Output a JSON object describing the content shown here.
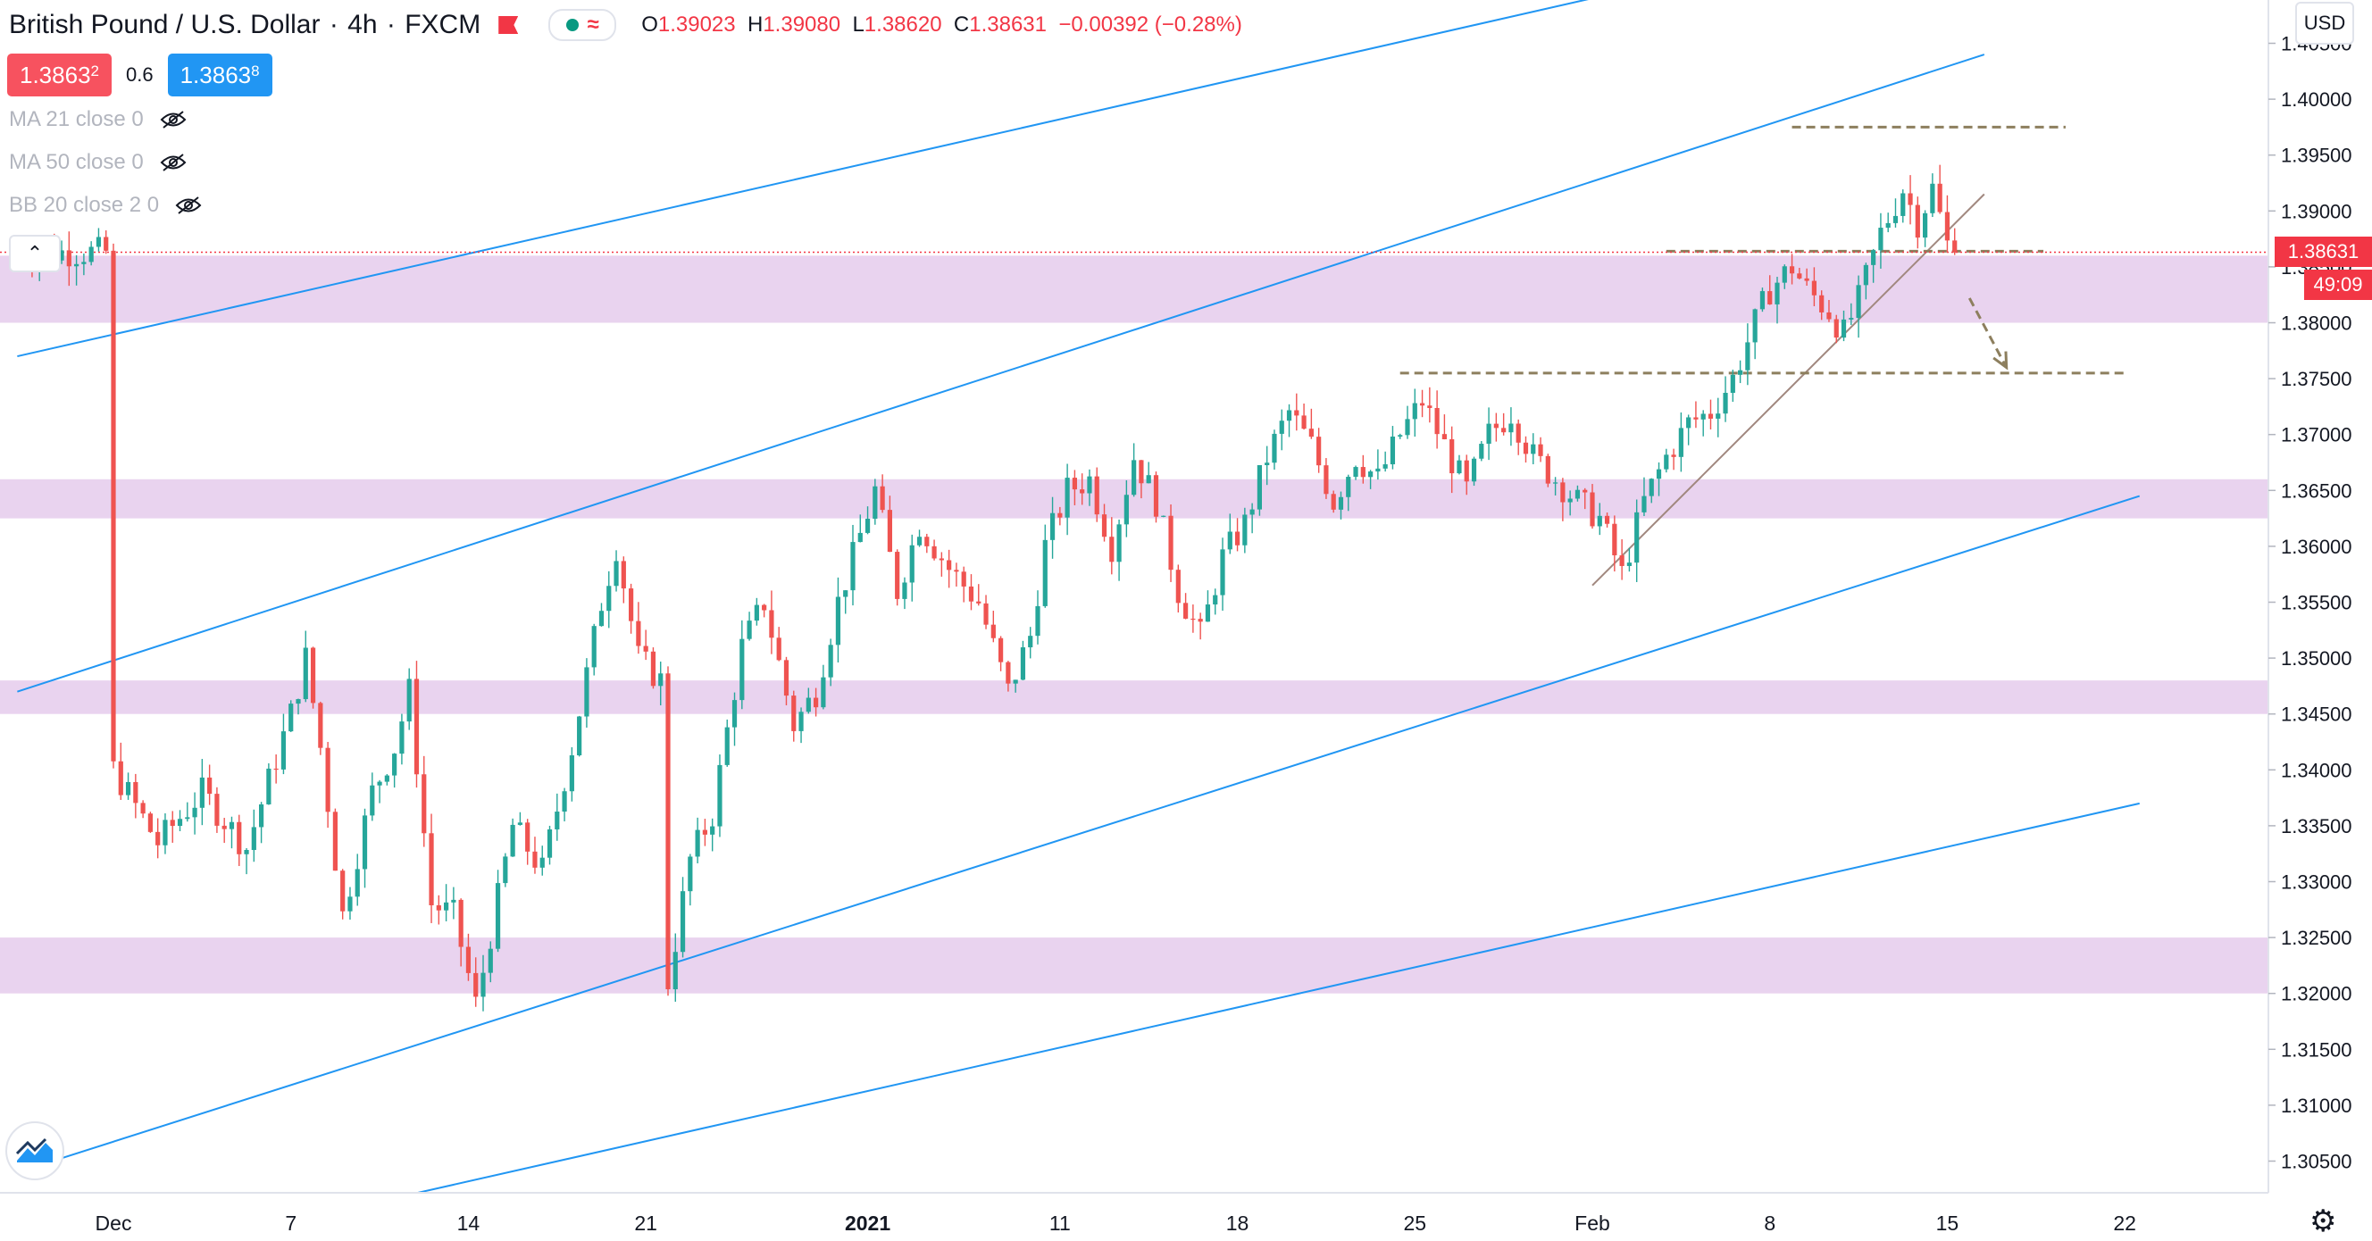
{
  "header": {
    "symbol": "British Pound / U.S. Dollar",
    "interval": "4h",
    "exchange": "FXCM",
    "ohlc": {
      "o_label": "O",
      "o": "1.39023",
      "h_label": "H",
      "h": "1.39080",
      "l_label": "L",
      "l": "1.38620",
      "c_label": "C",
      "c": "1.38631",
      "change": "−0.00392 (−0.28%)"
    },
    "colors": {
      "down": "#f23645",
      "up": "#089981",
      "text": "#131722"
    }
  },
  "trade": {
    "sell_main": "1.3863",
    "sell_small": "2",
    "spread": "0.6",
    "buy_main": "1.3863",
    "buy_small": "8"
  },
  "indicators": [
    {
      "label": "MA 21 close 0",
      "icon": "eye-hidden-icon"
    },
    {
      "label": "MA 50 close 0",
      "icon": "eye-hidden-icon"
    },
    {
      "label": "BB 20 close 2 0",
      "icon": "eye-hidden-icon"
    }
  ],
  "currency_button": "USD",
  "last_price_label": "1.38631",
  "countdown_label": "49:09",
  "chart_data": {
    "type": "candlestick",
    "y_ticks": [
      "1.40500",
      "1.40000",
      "1.39500",
      "1.39000",
      "1.38500",
      "1.38000",
      "1.37500",
      "1.37000",
      "1.36500",
      "1.36000",
      "1.35500",
      "1.35000",
      "1.34500",
      "1.34000",
      "1.33500",
      "1.33000",
      "1.32500",
      "1.32000",
      "1.31500",
      "1.31000",
      "1.30500"
    ],
    "x_ticks": [
      {
        "label": "Dec",
        "index": 0
      },
      {
        "label": "7",
        "index": 24
      },
      {
        "label": "14",
        "index": 48
      },
      {
        "label": "21",
        "index": 72
      },
      {
        "label": "2021",
        "index": 102
      },
      {
        "label": "11",
        "index": 128
      },
      {
        "label": "18",
        "index": 152
      },
      {
        "label": "25",
        "index": 176
      },
      {
        "label": "Feb",
        "index": 200
      },
      {
        "label": "8",
        "index": 224
      },
      {
        "label": "15",
        "index": 248
      },
      {
        "label": "22",
        "index": 272
      }
    ],
    "ylim": [
      1.3005,
      1.4065
    ],
    "candles_anchor_x_index": -13,
    "visible_candles": 287,
    "price_path": [
      [
        0,
        1.34
      ],
      [
        6,
        1.3335
      ],
      [
        12,
        1.338
      ],
      [
        18,
        1.333
      ],
      [
        24,
        1.345
      ],
      [
        26,
        1.35
      ],
      [
        28,
        1.342
      ],
      [
        31,
        1.327
      ],
      [
        35,
        1.338
      ],
      [
        38,
        1.342
      ],
      [
        40,
        1.347
      ],
      [
        43,
        1.328
      ],
      [
        46,
        1.327
      ],
      [
        49,
        1.319
      ],
      [
        50,
        1.322
      ],
      [
        54,
        1.335
      ],
      [
        58,
        1.331
      ],
      [
        62,
        1.342
      ],
      [
        66,
        1.355
      ],
      [
        68,
        1.36
      ],
      [
        71,
        1.35
      ],
      [
        74,
        1.348
      ],
      [
        75,
        1.321
      ],
      [
        78,
        1.332
      ],
      [
        81,
        1.336
      ],
      [
        85,
        1.351
      ],
      [
        88,
        1.355
      ],
      [
        92,
        1.344
      ],
      [
        95,
        1.347
      ],
      [
        98,
        1.355
      ],
      [
        101,
        1.361
      ],
      [
        103,
        1.365
      ],
      [
        106,
        1.356
      ],
      [
        109,
        1.362
      ],
      [
        113,
        1.358
      ],
      [
        117,
        1.355
      ],
      [
        121,
        1.347
      ],
      [
        124,
        1.352
      ],
      [
        126,
        1.36
      ],
      [
        129,
        1.365
      ],
      [
        132,
        1.366
      ],
      [
        135,
        1.36
      ],
      [
        138,
        1.368
      ],
      [
        141,
        1.364
      ],
      [
        144,
        1.356
      ],
      [
        147,
        1.352
      ],
      [
        150,
        1.359
      ],
      [
        153,
        1.362
      ],
      [
        156,
        1.368
      ],
      [
        159,
        1.372
      ],
      [
        162,
        1.369
      ],
      [
        165,
        1.364
      ],
      [
        168,
        1.368
      ],
      [
        171,
        1.366
      ],
      [
        174,
        1.37
      ],
      [
        177,
        1.373
      ],
      [
        180,
        1.369
      ],
      [
        183,
        1.365
      ],
      [
        186,
        1.37
      ],
      [
        189,
        1.372
      ],
      [
        192,
        1.368
      ],
      [
        195,
        1.366
      ],
      [
        198,
        1.364
      ],
      [
        201,
        1.3625
      ],
      [
        204,
        1.3575
      ],
      [
        207,
        1.364
      ],
      [
        210,
        1.368
      ],
      [
        213,
        1.371
      ],
      [
        216,
        1.372
      ],
      [
        219,
        1.375
      ],
      [
        222,
        1.38
      ],
      [
        224,
        1.383
      ],
      [
        227,
        1.385
      ],
      [
        229,
        1.383
      ],
      [
        232,
        1.381
      ],
      [
        234,
        1.379
      ],
      [
        236,
        1.382
      ],
      [
        239,
        1.388
      ],
      [
        242,
        1.392
      ],
      [
        244,
        1.389
      ],
      [
        246,
        1.392
      ],
      [
        248,
        1.387
      ],
      [
        249,
        1.38631
      ]
    ],
    "zones": [
      {
        "from": 1.38,
        "to": 1.386,
        "color": "#e9d3ef"
      },
      {
        "from": 1.3625,
        "to": 1.366,
        "color": "#e9d3ef"
      },
      {
        "from": 1.345,
        "to": 1.348,
        "color": "#e9d3ef"
      },
      {
        "from": 1.32,
        "to": 1.325,
        "color": "#e9d3ef"
      }
    ],
    "channel_lines": [
      {
        "x1": -13,
        "y1": 1.377,
        "x2": 253,
        "y2": 1.417,
        "color": "#2196f3"
      },
      {
        "x1": -13,
        "y1": 1.347,
        "x2": 253,
        "y2": 1.404,
        "color": "#2196f3"
      },
      {
        "x1": -13,
        "y1": 1.304,
        "x2": 274,
        "y2": 1.3645,
        "color": "#2196f3"
      },
      {
        "x1": 20,
        "y1": 1.299,
        "x2": 274,
        "y2": 1.337,
        "color": "#2196f3"
      }
    ],
    "trend_line": {
      "x1": 200,
      "y1": 1.3565,
      "x2": 253,
      "y2": 1.3915,
      "color": "#a1887f"
    },
    "dashed_levels": [
      {
        "x1": 227,
        "x2": 264,
        "y": 1.3975,
        "color": "#8d7f5e"
      },
      {
        "x1": 210,
        "x2": 261,
        "y": 1.3864,
        "color": "#8d7f5e"
      },
      {
        "x1": 174,
        "x2": 272,
        "y": 1.3755,
        "color": "#8d7f5e"
      }
    ],
    "projection_arrow": {
      "x1": 251,
      "y1": 1.3822,
      "x2": 256,
      "y2": 1.376,
      "color": "#8d7f5e"
    },
    "last_price": 1.38631
  }
}
